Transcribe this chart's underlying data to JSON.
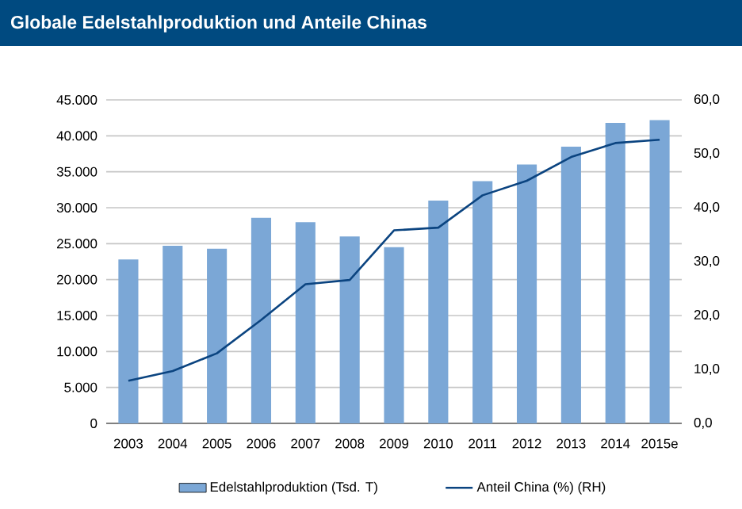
{
  "chart_data": {
    "type": "bar",
    "title": "Globale Edelstahlproduktion und Anteile Chinas",
    "categories": [
      "2003",
      "2004",
      "2005",
      "2006",
      "2007",
      "2008",
      "2009",
      "2010",
      "2011",
      "2012",
      "2013",
      "2014",
      "2015e"
    ],
    "series": [
      {
        "name": "Edelstahlproduktion (Tsd. T)",
        "color": "#7ba7d6",
        "values": [
          22800,
          24700,
          24300,
          28600,
          28000,
          26000,
          24500,
          31000,
          33700,
          36000,
          38500,
          41800,
          42200
        ]
      },
      {
        "name": "Anteil China (%) (RH)",
        "type": "line",
        "axis": "y2",
        "color": "#0b4480",
        "values": [
          7.9,
          9.7,
          13.0,
          19.2,
          25.8,
          26.6,
          35.8,
          36.3,
          42.3,
          45.0,
          49.4,
          52.0,
          52.6
        ]
      }
    ],
    "ylim": [
      0,
      45000
    ],
    "yticks": [
      {
        "value": 0,
        "label": "0"
      },
      {
        "value": 5000,
        "label": "5.000"
      },
      {
        "value": 10000,
        "label": "10.000"
      },
      {
        "value": 15000,
        "label": "15.000"
      },
      {
        "value": 20000,
        "label": "20.000"
      },
      {
        "value": 25000,
        "label": "25.000"
      },
      {
        "value": 30000,
        "label": "30.000"
      },
      {
        "value": 35000,
        "label": "35.000"
      },
      {
        "value": 40000,
        "label": "40.000"
      },
      {
        "value": 45000,
        "label": "45.000"
      }
    ],
    "y2lim": [
      0,
      60
    ],
    "y2ticks": [
      {
        "value": 0,
        "label": "0,0"
      },
      {
        "value": 10,
        "label": "10,0"
      },
      {
        "value": 20,
        "label": "20,0"
      },
      {
        "value": 30,
        "label": "30,0"
      },
      {
        "value": 40,
        "label": "40,0"
      },
      {
        "value": 50,
        "label": "50,0"
      },
      {
        "value": 60,
        "label": "60,0"
      }
    ],
    "grid": "y",
    "legend": "bottom",
    "marker": "none",
    "line_style": "solid"
  }
}
